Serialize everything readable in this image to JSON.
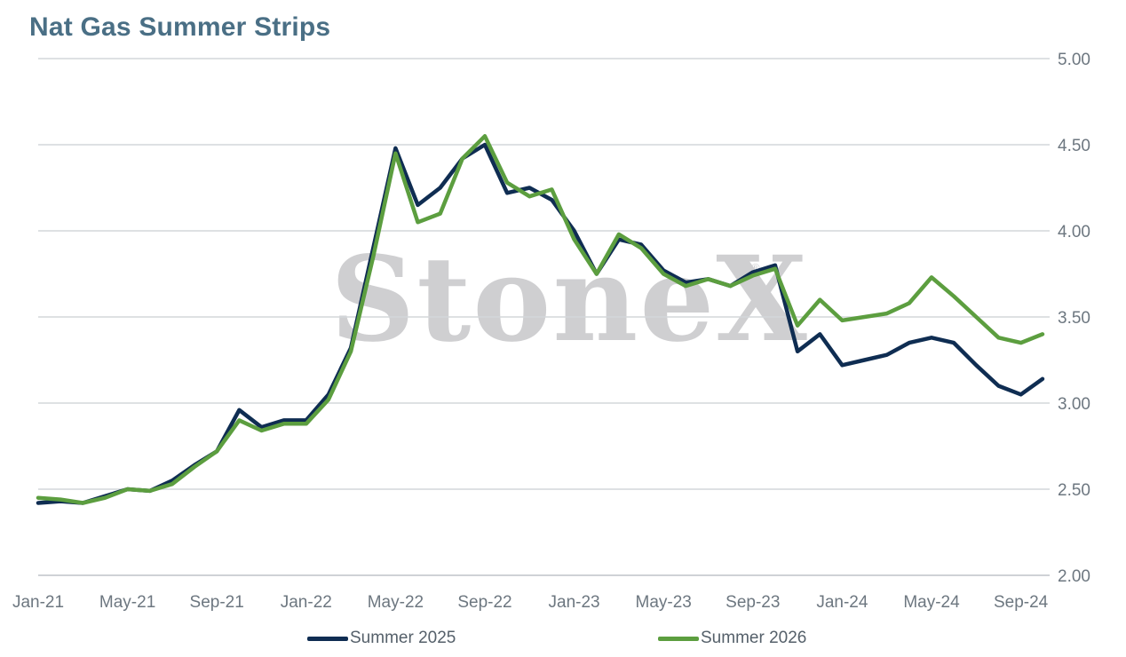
{
  "chart_data": {
    "type": "line",
    "title": "Nat Gas Summer Strips",
    "watermark": "StoneX",
    "watermark_mark": "®",
    "xlabel": "",
    "ylabel": "",
    "x_tick_labels": [
      "Jan-21",
      "May-21",
      "Sep-21",
      "Jan-22",
      "May-22",
      "Sep-22",
      "Jan-23",
      "May-23",
      "Sep-23",
      "Jan-24",
      "May-24",
      "Sep-24"
    ],
    "y_tick_labels": [
      "2.00",
      "2.50",
      "3.00",
      "3.50",
      "4.00",
      "4.50",
      "5.00"
    ],
    "ylim": [
      2.0,
      5.0
    ],
    "y_axis_side": "right",
    "grid": "horizontal",
    "legend": {
      "placement": "bottom"
    },
    "x": [
      "2021-01-01",
      "2021-02-01",
      "2021-03-01",
      "2021-04-01",
      "2021-05-01",
      "2021-06-01",
      "2021-07-01",
      "2021-08-01",
      "2021-09-01",
      "2021-10-01",
      "2021-11-01",
      "2021-12-01",
      "2022-01-01",
      "2022-02-01",
      "2022-03-01",
      "2022-04-01",
      "2022-05-01",
      "2022-06-01",
      "2022-07-01",
      "2022-08-01",
      "2022-09-01",
      "2022-10-01",
      "2022-11-01",
      "2022-12-01",
      "2023-01-01",
      "2023-02-01",
      "2023-03-01",
      "2023-04-01",
      "2023-05-01",
      "2023-06-01",
      "2023-07-01",
      "2023-08-01",
      "2023-09-01",
      "2023-10-01",
      "2023-11-01",
      "2023-12-01",
      "2024-01-01",
      "2024-02-01",
      "2024-03-01",
      "2024-04-01",
      "2024-05-01",
      "2024-06-01",
      "2024-07-01",
      "2024-08-01",
      "2024-09-01",
      "2024-10-01"
    ],
    "series": [
      {
        "name": "Summer 2025",
        "color": "#0f2d52",
        "values": [
          2.42,
          2.43,
          2.42,
          2.46,
          2.5,
          2.49,
          2.55,
          2.64,
          2.72,
          2.96,
          2.86,
          2.9,
          2.9,
          3.05,
          3.32,
          3.9,
          4.48,
          4.15,
          4.25,
          4.42,
          4.5,
          4.22,
          4.25,
          4.18,
          4.0,
          3.75,
          3.95,
          3.92,
          3.77,
          3.7,
          3.72,
          3.68,
          3.76,
          3.8,
          3.3,
          3.4,
          3.22,
          3.25,
          3.28,
          3.35,
          3.38,
          3.35,
          3.22,
          3.1,
          3.05,
          3.14
        ]
      },
      {
        "name": "Summer 2026",
        "color": "#5c9e3f",
        "values": [
          2.45,
          2.44,
          2.42,
          2.45,
          2.5,
          2.49,
          2.53,
          2.63,
          2.72,
          2.9,
          2.84,
          2.88,
          2.88,
          3.02,
          3.3,
          3.85,
          4.45,
          4.05,
          4.1,
          4.42,
          4.55,
          4.28,
          4.2,
          4.24,
          3.95,
          3.75,
          3.98,
          3.9,
          3.75,
          3.68,
          3.72,
          3.68,
          3.74,
          3.78,
          3.45,
          3.6,
          3.48,
          3.5,
          3.52,
          3.58,
          3.73,
          3.62,
          3.5,
          3.38,
          3.35,
          3.4
        ]
      }
    ]
  }
}
